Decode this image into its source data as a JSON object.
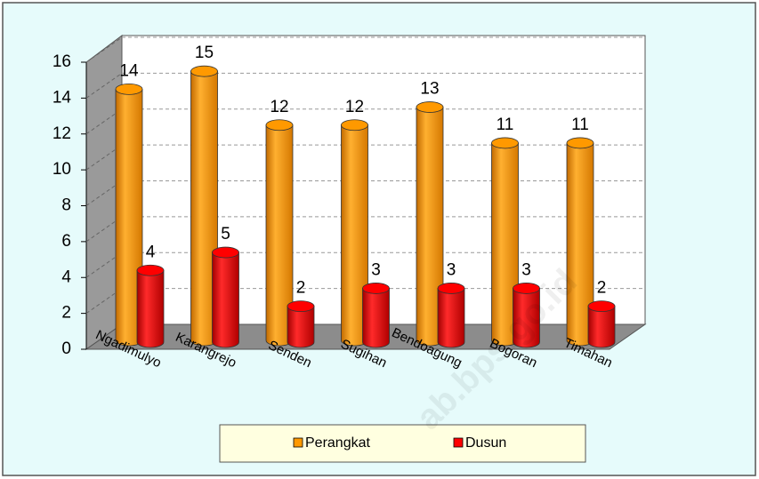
{
  "chart_data": {
    "type": "bar",
    "categories": [
      "Ngadimulyo",
      "Karangrejo",
      "Senden",
      "Sugihan",
      "Bendoagung",
      "Bogoran",
      "Timahan"
    ],
    "series": [
      {
        "name": "Perangkat",
        "color": "#ff9900",
        "values": [
          14,
          15,
          12,
          12,
          13,
          11,
          11
        ]
      },
      {
        "name": "Dusun",
        "color": "#ff0000",
        "values": [
          4,
          5,
          2,
          3,
          3,
          3,
          2
        ]
      }
    ],
    "ylim": [
      0,
      16
    ],
    "yticks": [
      0,
      2,
      4,
      6,
      8,
      10,
      12,
      14,
      16
    ],
    "grid": true,
    "legend": "bottom",
    "watermark": "ab.bps.go.id"
  }
}
